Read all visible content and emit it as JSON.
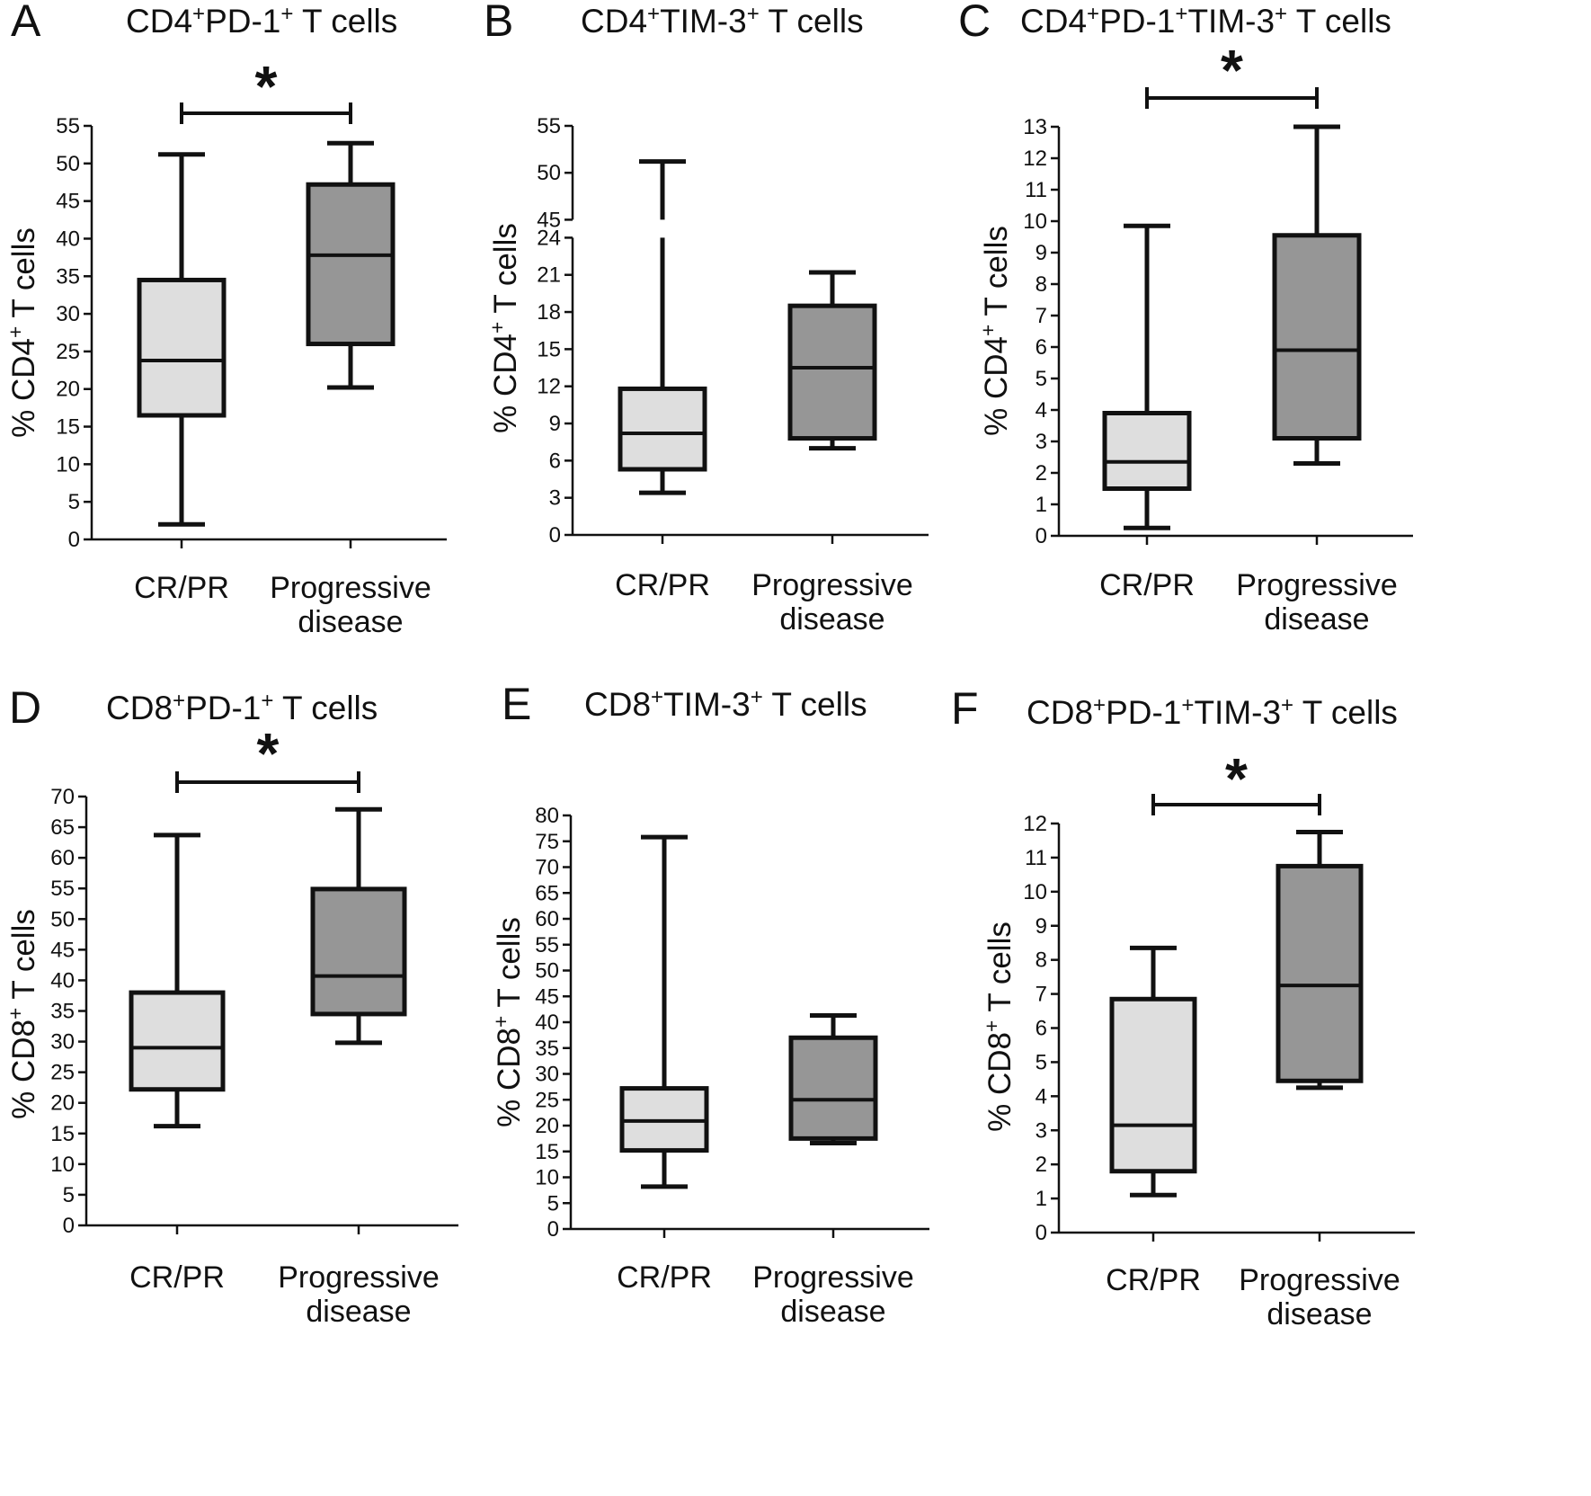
{
  "chart_data": [
    {
      "panel": "A",
      "type": "box",
      "title": "CD4+PD-1+ T cells",
      "title_parts": [
        {
          "t": "CD4",
          "sup": false
        },
        {
          "t": "+",
          "sup": true
        },
        {
          "t": "PD-1",
          "sup": false
        },
        {
          "t": "+",
          "sup": true
        },
        {
          "t": " T cells",
          "sup": false
        }
      ],
      "ylabel": "% CD4+ T cells",
      "ylabel_parts": [
        {
          "t": "% CD4",
          "sup": false
        },
        {
          "t": "+",
          "sup": true
        },
        {
          "t": " T cells",
          "sup": false
        }
      ],
      "ylim": [
        0,
        55
      ],
      "yticks": [
        0,
        5,
        10,
        15,
        20,
        25,
        30,
        35,
        40,
        45,
        50,
        55
      ],
      "categories": [
        [
          "CR/PR"
        ],
        [
          "Progressive",
          "disease"
        ]
      ],
      "boxes": [
        {
          "min": 2,
          "q1": 16.5,
          "median": 23.8,
          "q3": 34.5,
          "max": 51.2,
          "color": "#dedede"
        },
        {
          "min": 20.2,
          "q1": 26,
          "median": 37.8,
          "q3": 47.2,
          "max": 52.7,
          "color": "#969696"
        }
      ],
      "significance": "*"
    },
    {
      "panel": "B",
      "type": "box",
      "title": "CD4+TIM-3+ T cells",
      "title_parts": [
        {
          "t": "CD4",
          "sup": false
        },
        {
          "t": "+",
          "sup": true
        },
        {
          "t": "TIM-3",
          "sup": false
        },
        {
          "t": "+",
          "sup": true
        },
        {
          "t": " T cells",
          "sup": false
        }
      ],
      "ylabel": "% CD4+ T cells",
      "ylabel_parts": [
        {
          "t": "% CD4",
          "sup": false
        },
        {
          "t": "+",
          "sup": true
        },
        {
          "t": " T cells",
          "sup": false
        }
      ],
      "ylim": [
        0,
        55
      ],
      "axis_break": [
        24,
        45
      ],
      "yticks": [
        0,
        3,
        6,
        9,
        12,
        15,
        18,
        21,
        24,
        45,
        50,
        55
      ],
      "categories": [
        [
          "CR/PR"
        ],
        [
          "Progressive",
          "disease"
        ]
      ],
      "boxes": [
        {
          "min": 3.4,
          "q1": 5.3,
          "median": 8.2,
          "q3": 11.8,
          "max": 51.2,
          "color": "#dedede"
        },
        {
          "min": 7,
          "q1": 7.8,
          "median": 13.5,
          "q3": 18.5,
          "max": 21.2,
          "color": "#969696"
        }
      ],
      "significance": ""
    },
    {
      "panel": "C",
      "type": "box",
      "title": "CD4+PD-1+TIM-3+ T cells",
      "title_parts": [
        {
          "t": "CD4",
          "sup": false
        },
        {
          "t": "+",
          "sup": true
        },
        {
          "t": "PD-1",
          "sup": false
        },
        {
          "t": "+",
          "sup": true
        },
        {
          "t": "TIM-3",
          "sup": false
        },
        {
          "t": "+",
          "sup": true
        },
        {
          "t": " T cells",
          "sup": false
        }
      ],
      "ylabel": "% CD4+ T cells",
      "ylabel_parts": [
        {
          "t": "% CD4",
          "sup": false
        },
        {
          "t": "+",
          "sup": true
        },
        {
          "t": " T cells",
          "sup": false
        }
      ],
      "ylim": [
        0,
        13
      ],
      "yticks": [
        0,
        1,
        2,
        3,
        4,
        5,
        6,
        7,
        8,
        9,
        10,
        11,
        12,
        13
      ],
      "categories": [
        [
          "CR/PR"
        ],
        [
          "Progressive",
          "disease"
        ]
      ],
      "boxes": [
        {
          "min": 0.25,
          "q1": 1.5,
          "median": 2.35,
          "q3": 3.9,
          "max": 9.85,
          "color": "#dedede"
        },
        {
          "min": 2.3,
          "q1": 3.1,
          "median": 5.9,
          "q3": 9.55,
          "max": 13,
          "color": "#969696"
        }
      ],
      "significance": "*"
    },
    {
      "panel": "D",
      "type": "box",
      "title": "CD8+PD-1+ T cells",
      "title_parts": [
        {
          "t": "CD8",
          "sup": false
        },
        {
          "t": "+",
          "sup": true
        },
        {
          "t": "PD-1",
          "sup": false
        },
        {
          "t": "+",
          "sup": true
        },
        {
          "t": " T cells",
          "sup": false
        }
      ],
      "ylabel": "% CD8+ T cells",
      "ylabel_parts": [
        {
          "t": "% CD8",
          "sup": false
        },
        {
          "t": "+",
          "sup": true
        },
        {
          "t": " T cells",
          "sup": false
        }
      ],
      "ylim": [
        0,
        70
      ],
      "yticks": [
        0,
        5,
        10,
        15,
        20,
        25,
        30,
        35,
        40,
        45,
        50,
        55,
        60,
        65,
        70
      ],
      "categories": [
        [
          "CR/PR"
        ],
        [
          "Progressive",
          "disease"
        ]
      ],
      "boxes": [
        {
          "min": 16.2,
          "q1": 22.2,
          "median": 29,
          "q3": 38,
          "max": 63.7,
          "color": "#dedede"
        },
        {
          "min": 29.8,
          "q1": 34.5,
          "median": 40.7,
          "q3": 54.9,
          "max": 67.9,
          "color": "#969696"
        }
      ],
      "significance": "*"
    },
    {
      "panel": "E",
      "type": "box",
      "title": "CD8+TIM-3+ T cells",
      "title_parts": [
        {
          "t": "CD8",
          "sup": false
        },
        {
          "t": "+",
          "sup": true
        },
        {
          "t": "TIM-3",
          "sup": false
        },
        {
          "t": "+",
          "sup": true
        },
        {
          "t": " T cells",
          "sup": false
        }
      ],
      "ylabel": "% CD8+ T cells",
      "ylabel_parts": [
        {
          "t": "% CD8",
          "sup": false
        },
        {
          "t": "+",
          "sup": true
        },
        {
          "t": " T cells",
          "sup": false
        }
      ],
      "ylim": [
        0,
        80
      ],
      "yticks": [
        0,
        5,
        10,
        15,
        20,
        25,
        30,
        35,
        40,
        45,
        50,
        55,
        60,
        65,
        70,
        75,
        80
      ],
      "categories": [
        [
          "CR/PR"
        ],
        [
          "Progressive",
          "disease"
        ]
      ],
      "boxes": [
        {
          "min": 8.2,
          "q1": 15.2,
          "median": 20.9,
          "q3": 27.2,
          "max": 75.8,
          "color": "#dedede"
        },
        {
          "min": 16.6,
          "q1": 17.5,
          "median": 25,
          "q3": 37,
          "max": 41.3,
          "color": "#969696"
        }
      ],
      "significance": ""
    },
    {
      "panel": "F",
      "type": "box",
      "title": "CD8+PD-1+TIM-3+ T cells",
      "title_parts": [
        {
          "t": "CD8",
          "sup": false
        },
        {
          "t": "+",
          "sup": true
        },
        {
          "t": "PD-1",
          "sup": false
        },
        {
          "t": "+",
          "sup": true
        },
        {
          "t": "TIM-3",
          "sup": false
        },
        {
          "t": "+",
          "sup": true
        },
        {
          "t": " T cells",
          "sup": false
        }
      ],
      "ylabel": "% CD8+ T cells",
      "ylabel_parts": [
        {
          "t": "% CD8",
          "sup": false
        },
        {
          "t": "+",
          "sup": true
        },
        {
          "t": " T cells",
          "sup": false
        }
      ],
      "ylim": [
        0,
        12
      ],
      "yticks": [
        0,
        1,
        2,
        3,
        4,
        5,
        6,
        7,
        8,
        9,
        10,
        11,
        12
      ],
      "categories": [
        [
          "CR/PR"
        ],
        [
          "Progressive",
          "disease"
        ]
      ],
      "boxes": [
        {
          "min": 1.1,
          "q1": 1.8,
          "median": 3.15,
          "q3": 6.85,
          "max": 8.35,
          "color": "#dedede"
        },
        {
          "min": 4.25,
          "q1": 4.45,
          "median": 7.25,
          "q3": 10.75,
          "max": 11.75,
          "color": "#969696"
        }
      ],
      "significance": "*"
    }
  ]
}
